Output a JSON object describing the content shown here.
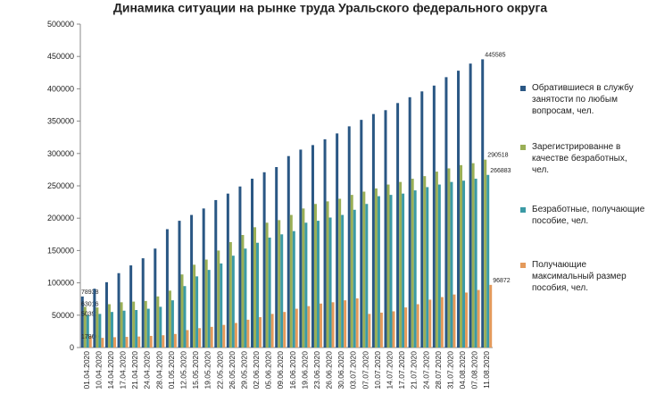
{
  "chart_data": {
    "type": "bar",
    "title": "Динамика ситуации  на рынке труда Уральского федерального округа",
    "categories": [
      "01.04.2020",
      "10.04.2020",
      "14.04.2020",
      "17.04.2020",
      "21.04.2020",
      "24.04.2020",
      "28.04.2020",
      "01.05.2020",
      "12.05.2020",
      "15.05.2020",
      "19.05.2020",
      "22.05.2020",
      "26.05.2020",
      "29.05.2020",
      "02.06.2020",
      "05.06.2020",
      "09.06.2020",
      "16.06.2020",
      "19.06.2020",
      "23.06.2020",
      "26.06.2020",
      "30.06.2020",
      "03.07.2020",
      "07.07.2020",
      "10.07.2020",
      "14.07.2020",
      "17.07.2020",
      "21.07.2020",
      "24.07.2020",
      "28.07.2020",
      "31.07.2020",
      "04.08.2020",
      "07.08.2020",
      "11.08.2020"
    ],
    "series": [
      {
        "name": "Обратившиеся в службу занятости по любым вопросам, чел.",
        "color": "#2a5784",
        "values": [
          78938,
          91000,
          101000,
          115000,
          127000,
          138000,
          153000,
          183000,
          196000,
          205000,
          215000,
          228000,
          238000,
          249000,
          261000,
          271000,
          279000,
          296000,
          306000,
          313000,
          322000,
          331000,
          342000,
          352000,
          361000,
          367000,
          378000,
          387000,
          396000,
          405000,
          418000,
          428000,
          439000,
          445585
        ]
      },
      {
        "name": "Зарегистрированне в качестве безработных, чел.",
        "color": "#9aaf56",
        "values": [
          63016,
          62000,
          67000,
          70000,
          71000,
          72000,
          79000,
          88000,
          113000,
          128000,
          136000,
          150000,
          163000,
          174000,
          186000,
          193000,
          197000,
          205000,
          215000,
          222000,
          226000,
          230000,
          236000,
          241000,
          246000,
          252000,
          256000,
          261000,
          265000,
          272000,
          277000,
          282000,
          285000,
          290518
        ]
      },
      {
        "name": "Безработные, получающие пособие, чел.",
        "color": "#3b9aa5",
        "values": [
          50392,
          52000,
          55000,
          57000,
          58000,
          60000,
          63000,
          73000,
          95000,
          110000,
          120000,
          130000,
          142000,
          153000,
          162000,
          170000,
          175000,
          180000,
          193000,
          196000,
          201000,
          205000,
          213000,
          222000,
          234000,
          236000,
          238000,
          243000,
          248000,
          252000,
          256000,
          258000,
          261000,
          266883
        ]
      },
      {
        "name": "Получающие максимальный размер пособия, чел.",
        "color": "#e49a5b",
        "values": [
          17860,
          15000,
          16000,
          16500,
          17000,
          18000,
          19000,
          21000,
          27000,
          30000,
          32000,
          35000,
          38000,
          43000,
          47000,
          52000,
          55000,
          60000,
          64000,
          68000,
          70000,
          73000,
          76000,
          52000,
          54000,
          56000,
          62000,
          67000,
          74000,
          78000,
          82000,
          85000,
          89000,
          96872
        ]
      }
    ],
    "ylim": [
      0,
      500000
    ],
    "yticks": [
      0,
      50000,
      100000,
      150000,
      200000,
      250000,
      300000,
      350000,
      400000,
      450000,
      500000
    ],
    "grid": false,
    "legend": "right"
  }
}
